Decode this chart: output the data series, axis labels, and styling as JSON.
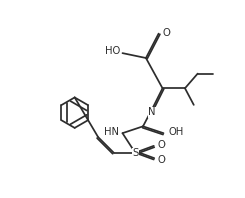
{
  "bg_color": "#ffffff",
  "line_color": "#2d2d2d",
  "line_width": 1.25,
  "font_size": 7.2,
  "dbl_off": 0.075,
  "xlim": [
    0,
    10
  ],
  "ylim": [
    0,
    10
  ]
}
